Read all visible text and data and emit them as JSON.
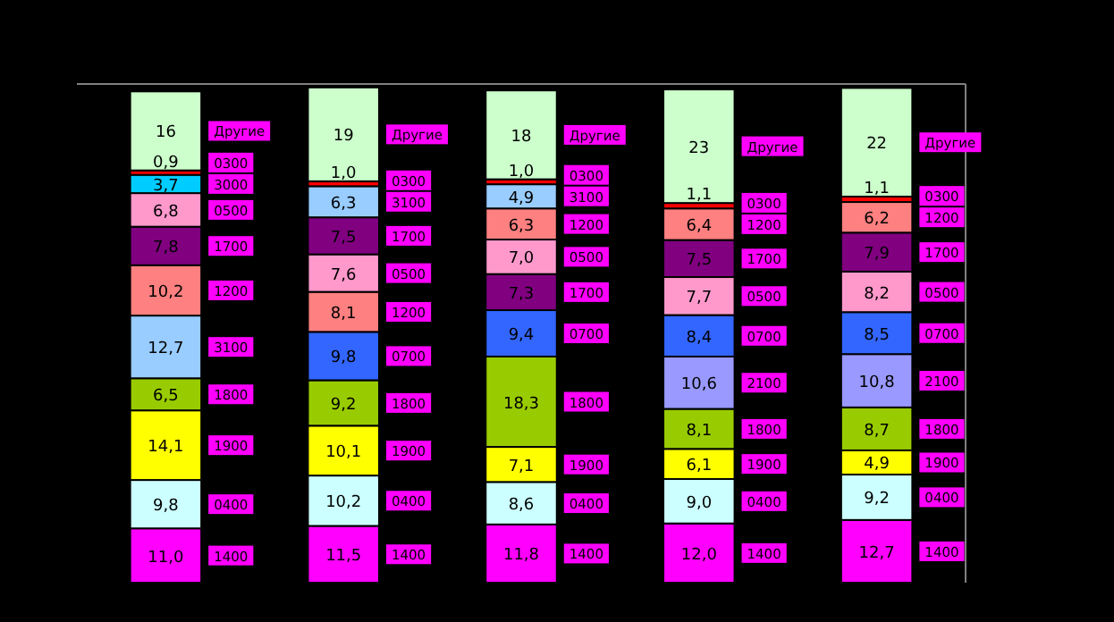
{
  "chart_data": {
    "type": "bar",
    "stacked": true,
    "categories": [
      null,
      null,
      null,
      null,
      null
    ],
    "ylim": [
      0,
      101
    ],
    "series": [
      {
        "colors": [
          "#ff00ff",
          "#ff00ff",
          "#ff00ff",
          "#ff00ff",
          "#ff00ff"
        ],
        "values": [
          11.0,
          11.5,
          11.8,
          12.0,
          12.7
        ],
        "value_labels": [
          "11,0",
          "11,5",
          "11,8",
          "12,0",
          "12,7"
        ]
      },
      {
        "colors": [
          "#ccffff",
          "#ccffff",
          "#ccffff",
          "#ccffff",
          "#ccffff"
        ],
        "values": [
          9.8,
          10.2,
          8.6,
          9.0,
          9.2
        ],
        "value_labels": [
          "9,8",
          "10,2",
          "8,6",
          "9,0",
          "9,2"
        ]
      },
      {
        "colors": [
          "#ffff00",
          "#ffff00",
          "#ffff00",
          "#ffff00",
          "#ffff00"
        ],
        "values": [
          14.1,
          10.1,
          7.1,
          6.1,
          4.9
        ],
        "value_labels": [
          "14,1",
          "10,1",
          "7,1",
          "6,1",
          "4,9"
        ]
      },
      {
        "colors": [
          "#99cc00",
          "#99cc00",
          "#99cc00",
          "#99cc00",
          "#99cc00"
        ],
        "values": [
          6.5,
          9.2,
          18.3,
          8.1,
          8.7
        ],
        "value_labels": [
          "6,5",
          "9,2",
          "18,3",
          "8,1",
          "8,7"
        ]
      },
      {
        "colors": [
          "#99ccff",
          "#3366ff",
          "#3366ff",
          "#9999ff",
          "#9999ff"
        ],
        "values": [
          12.7,
          9.8,
          9.4,
          10.6,
          10.8
        ],
        "value_labels": [
          "12,7",
          "9,8",
          "9,4",
          "10,6",
          "10,8"
        ]
      },
      {
        "colors": [
          "#ff8080",
          "#ff8080",
          "#800080",
          "#3366ff",
          "#3366ff"
        ],
        "values": [
          10.2,
          8.1,
          7.3,
          8.4,
          8.5
        ],
        "value_labels": [
          "10,2",
          "8,1",
          "7,3",
          "8,4",
          "8,5"
        ]
      },
      {
        "colors": [
          "#800080",
          "#ff99cc",
          "#ff99cc",
          "#ff99cc",
          "#ff99cc"
        ],
        "values": [
          7.8,
          7.6,
          7.0,
          7.7,
          8.2
        ],
        "value_labels": [
          "7,8",
          "7,6",
          "7,0",
          "7,7",
          "8,2"
        ]
      },
      {
        "colors": [
          "#ff99cc",
          "#800080",
          "#ff8080",
          "#800080",
          "#800080"
        ],
        "values": [
          6.8,
          7.5,
          6.3,
          7.5,
          7.9
        ],
        "value_labels": [
          "6,8",
          "7,5",
          "6,3",
          "7,5",
          "7,9"
        ]
      },
      {
        "colors": [
          "#00ccff",
          "#99ccff",
          "#99ccff",
          "#ff8080",
          "#ff8080"
        ],
        "values": [
          3.7,
          6.3,
          4.9,
          6.4,
          6.2
        ],
        "value_labels": [
          "3,7",
          "6,3",
          "4,9",
          "6,4",
          "6,2"
        ]
      },
      {
        "colors": [
          "#ff0000",
          "#ff0000",
          "#ff0000",
          "#ff0000",
          "#ff0000"
        ],
        "values": [
          0.9,
          1.0,
          1.0,
          1.1,
          1.1
        ],
        "value_labels": [
          "0,9",
          "1,0",
          "1,0",
          "1,1",
          "1,1"
        ]
      },
      {
        "colors": [
          "#ccffcc",
          "#ccffcc",
          "#ccffcc",
          "#ccffcc",
          "#ccffcc"
        ],
        "values": [
          16,
          19,
          18,
          23,
          22
        ],
        "value_labels": [
          "16",
          "19",
          "18",
          "23",
          "22"
        ]
      }
    ],
    "annotations": [
      "1400",
      "0400",
      "1900",
      "1800",
      "3100",
      "1200",
      "1700",
      "0500",
      "3000",
      "0300",
      "Другие",
      "1400",
      "0400",
      "1900",
      "1800",
      "0700",
      "1200",
      "0500",
      "1700",
      "3100",
      "0300",
      "Другие",
      "1400",
      "0400",
      "1900",
      "1800",
      "0700",
      "1700",
      "0500",
      "1200",
      "3100",
      "0300",
      "Другие",
      "1400",
      "0400",
      "1900",
      "1800",
      "2100",
      "0700",
      "0500",
      "1700",
      "1200",
      "0300",
      "Другие",
      "1400",
      "0400",
      "1900",
      "1800",
      "2100",
      "0700",
      "0500",
      "1700",
      "1200",
      "0300",
      "Другие"
    ]
  }
}
